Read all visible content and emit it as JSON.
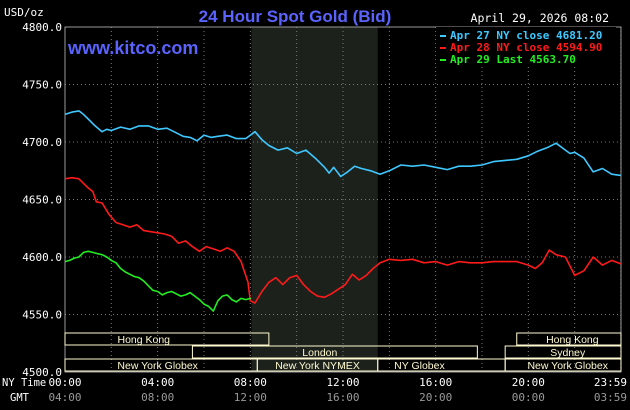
{
  "header": {
    "title": "24 Hour Spot Gold (Bid)",
    "timestamp": "April 29, 2026 08:02",
    "y_unit": "USD/oz",
    "watermark": "www.kitco.com"
  },
  "axis_labels": {
    "row1": "NY Time",
    "row2": "GMT"
  },
  "colors": {
    "background": "#000000",
    "plot_background": "#000000",
    "night_band": "#1c211c",
    "grid": "#7a7a7a",
    "title": "#5b63ff",
    "text": "#ffffff",
    "session_bar": "#fffbd0",
    "apr27": "#3fc8ff",
    "apr28": "#ff1a1a",
    "apr29": "#22ee22"
  },
  "sessions": [
    {
      "label": "Hong Kong",
      "row": 1
    },
    {
      "label": "London",
      "row": 2
    },
    {
      "label": "New York Globex",
      "row": 3
    },
    {
      "label": "New York NYMEX",
      "row": 3
    },
    {
      "label": "NY Globex",
      "row": 3
    },
    {
      "label": "Hong Kong",
      "row": 1
    },
    {
      "label": "Sydney",
      "row": 2
    },
    {
      "label": "New York Globex",
      "row": 3
    }
  ],
  "chart_data": {
    "type": "line",
    "title": "24 Hour Spot Gold (Bid)",
    "ylabel": "USD/oz",
    "ylim": [
      4500,
      4800
    ],
    "yticks": [
      "4500.0",
      "4550.0",
      "4600.0",
      "4650.0",
      "4700.0",
      "4750.0",
      "4800.0"
    ],
    "xlim": [
      0,
      24
    ],
    "xticks_ny": [
      "00:00",
      "04:00",
      "08:00",
      "12:00",
      "16:00",
      "20:00",
      "23:59"
    ],
    "xticks_gmt": [
      "04:00",
      "08:00",
      "12:00",
      "16:00",
      "20:00",
      "00:00",
      "03:59"
    ],
    "grid": true,
    "legend_position": "top-right",
    "series": [
      {
        "name": "Apr 27 NY close 4681.20",
        "x": [
          0,
          0.3,
          0.6,
          0.8,
          1.0,
          1.3,
          1.6,
          1.8,
          2.0,
          2.4,
          2.8,
          3.2,
          3.6,
          4.0,
          4.4,
          4.8,
          5.1,
          5.4,
          5.7,
          6.0,
          6.3,
          6.6,
          7.0,
          7.4,
          7.8,
          8.2,
          8.5,
          8.8,
          9.2,
          9.6,
          10.0,
          10.4,
          10.8,
          11.2,
          11.4,
          11.6,
          11.9,
          12.2,
          12.5,
          12.8,
          13.2,
          13.6,
          14.0,
          14.5,
          15.0,
          15.5,
          16.0,
          16.5,
          17.0,
          17.5,
          18.0,
          18.5,
          19.0,
          19.5,
          20.0,
          20.4,
          20.8,
          21.2,
          21.6,
          21.8,
          22.0,
          22.4,
          22.8,
          23.2,
          23.6,
          23.99
        ],
        "y": [
          4724,
          4726,
          4727,
          4724,
          4720,
          4714,
          4709,
          4711,
          4710,
          4713,
          4711,
          4714,
          4714,
          4711,
          4712,
          4708,
          4705,
          4704,
          4701,
          4706,
          4704,
          4705,
          4706,
          4703,
          4703,
          4709,
          4702,
          4697,
          4693,
          4695,
          4690,
          4693,
          4686,
          4678,
          4673,
          4678,
          4670,
          4674,
          4679,
          4677,
          4675,
          4672,
          4675,
          4680,
          4679,
          4680,
          4678,
          4676,
          4679,
          4679,
          4680,
          4683,
          4684,
          4685,
          4688,
          4692,
          4695,
          4699,
          4693,
          4690,
          4691,
          4686,
          4674,
          4677,
          4672,
          4671
        ]
      },
      {
        "name": "Apr 28 NY close 4594.90",
        "x": [
          0,
          0.3,
          0.6,
          0.8,
          1.0,
          1.2,
          1.35,
          1.6,
          1.9,
          2.2,
          2.5,
          2.8,
          3.1,
          3.4,
          3.7,
          4.0,
          4.3,
          4.6,
          4.9,
          5.2,
          5.5,
          5.8,
          6.1,
          6.4,
          6.7,
          7.0,
          7.3,
          7.6,
          7.9,
          8.0,
          8.2,
          8.5,
          8.8,
          9.1,
          9.4,
          9.7,
          10.0,
          10.3,
          10.6,
          10.9,
          11.2,
          11.5,
          11.8,
          12.1,
          12.4,
          12.7,
          13.0,
          13.3,
          13.6,
          14.0,
          14.5,
          15.0,
          15.5,
          16.0,
          16.5,
          17.0,
          17.5,
          18.0,
          18.5,
          19.0,
          19.5,
          20.0,
          20.3,
          20.6,
          20.9,
          21.2,
          21.6,
          22.0,
          22.4,
          22.8,
          23.2,
          23.6,
          23.99
        ],
        "y": [
          4668,
          4669,
          4668,
          4664,
          4660,
          4657,
          4648,
          4647,
          4637,
          4630,
          4628,
          4626,
          4628,
          4623,
          4622,
          4621,
          4620,
          4618,
          4612,
          4614,
          4609,
          4605,
          4609,
          4607,
          4605,
          4608,
          4605,
          4596,
          4578,
          4562,
          4560,
          4570,
          4578,
          4582,
          4576,
          4582,
          4584,
          4576,
          4570,
          4566,
          4565,
          4568,
          4572,
          4576,
          4585,
          4580,
          4584,
          4590,
          4595,
          4598,
          4597,
          4598,
          4595,
          4596,
          4593,
          4596,
          4595,
          4595,
          4596,
          4596,
          4596,
          4593,
          4590,
          4595,
          4606,
          4602,
          4600,
          4584,
          4588,
          4600,
          4593,
          4597,
          4594
        ]
      },
      {
        "name": "Apr 29 Last 4563.70",
        "x": [
          0,
          0.2,
          0.4,
          0.6,
          0.8,
          1.0,
          1.2,
          1.4,
          1.6,
          1.8,
          2.0,
          2.2,
          2.4,
          2.6,
          2.8,
          3.0,
          3.2,
          3.4,
          3.6,
          3.8,
          4.0,
          4.2,
          4.4,
          4.6,
          4.8,
          5.0,
          5.2,
          5.4,
          5.6,
          5.8,
          6.0,
          6.2,
          6.4,
          6.6,
          6.8,
          7.0,
          7.2,
          7.4,
          7.6,
          7.8,
          8.0,
          8.03
        ],
        "y": [
          4596,
          4597,
          4599,
          4600,
          4604,
          4605,
          4604,
          4603,
          4602,
          4600,
          4597,
          4595,
          4590,
          4587,
          4585,
          4583,
          4582,
          4579,
          4575,
          4571,
          4570,
          4567,
          4569,
          4570,
          4568,
          4566,
          4567,
          4569,
          4566,
          4563,
          4559,
          4557,
          4553,
          4562,
          4566,
          4567,
          4563,
          4561,
          4564,
          4563,
          4564,
          4563.7
        ]
      }
    ]
  }
}
